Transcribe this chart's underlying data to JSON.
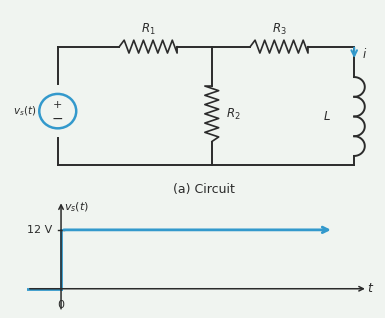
{
  "bg_color": "#f0f4f0",
  "circuit_color": "#2b2b2b",
  "blue_color": "#3399cc",
  "title": "(a) Circuit",
  "vs_label": "$v_s(t)$",
  "R1_label": "$R_1$",
  "R2_label": "$R_2$",
  "R3_label": "$R_3$",
  "L_label": "$L$",
  "i_label": "$i$",
  "plot_ylabel": "$v_s(t)$",
  "plot_xlabel": "$t$",
  "plot_12v": "12 V",
  "plot_0": "0"
}
